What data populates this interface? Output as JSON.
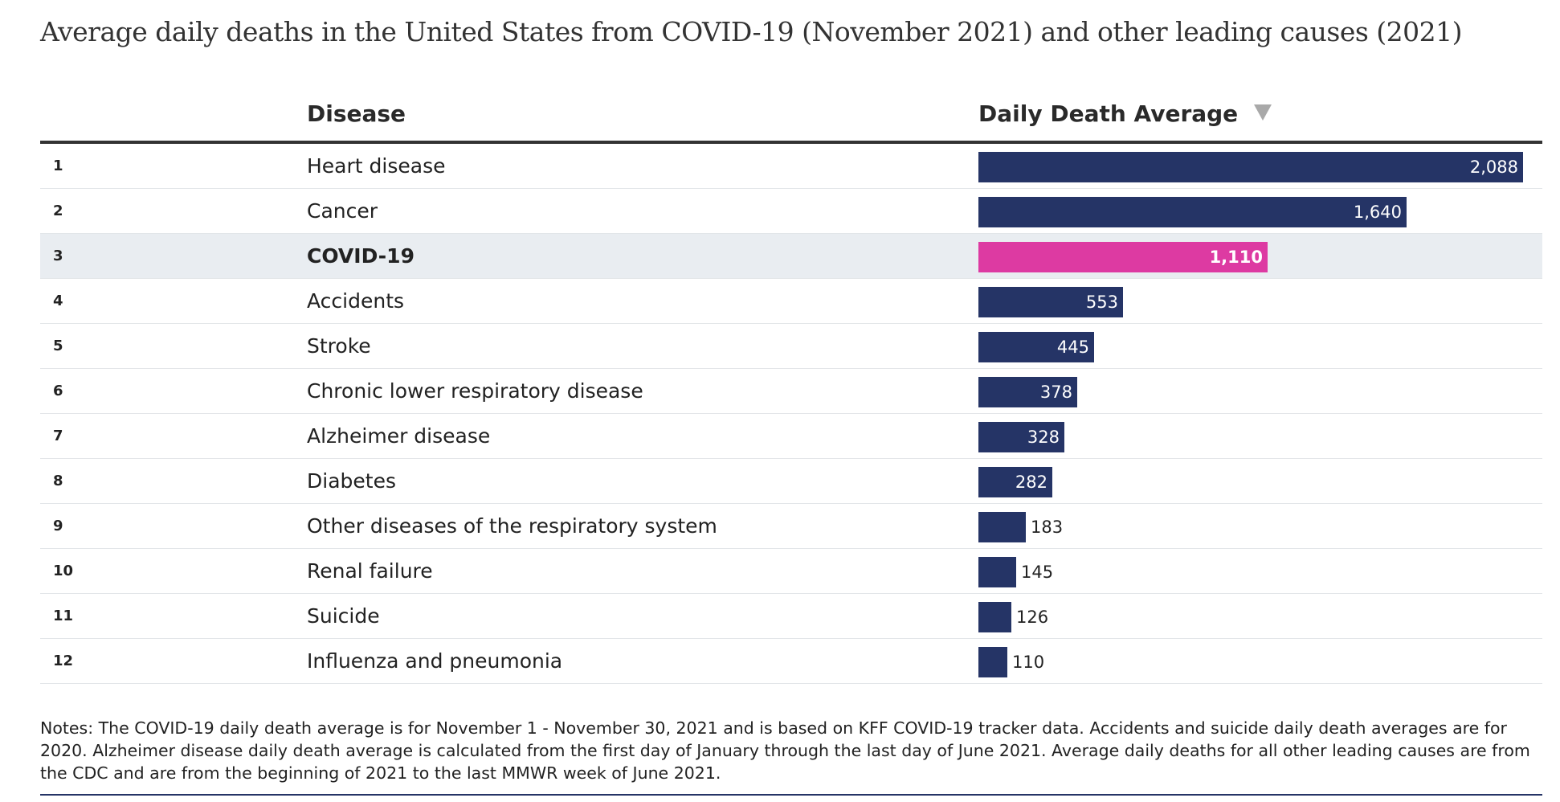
{
  "title": "Average daily deaths in the United States from COVID-19 (November 2021) and other leading causes (2021)",
  "columns": {
    "disease": "Disease",
    "value": "Daily Death Average"
  },
  "sort_icon": "triangle-down-icon",
  "colors": {
    "bar": "#253466",
    "highlight_bar": "#dd3aa2",
    "highlight_row": "#e9edf1"
  },
  "chart_data": {
    "type": "bar",
    "orientation": "horizontal",
    "title": "Average daily deaths in the United States from COVID-19 (November 2021) and other leading causes (2021)",
    "xlim": [
      0,
      2088
    ],
    "rows": [
      {
        "rank": "1",
        "disease": "Heart disease",
        "value": 2088,
        "label": "2,088",
        "highlight": false
      },
      {
        "rank": "2",
        "disease": "Cancer",
        "value": 1640,
        "label": "1,640",
        "highlight": false
      },
      {
        "rank": "3",
        "disease": "COVID-19",
        "value": 1110,
        "label": "1,110",
        "highlight": true
      },
      {
        "rank": "4",
        "disease": "Accidents",
        "value": 553,
        "label": "553",
        "highlight": false
      },
      {
        "rank": "5",
        "disease": "Stroke",
        "value": 445,
        "label": "445",
        "highlight": false
      },
      {
        "rank": "6",
        "disease": "Chronic lower respiratory disease",
        "value": 378,
        "label": "378",
        "highlight": false
      },
      {
        "rank": "7",
        "disease": "Alzheimer disease",
        "value": 328,
        "label": "328",
        "highlight": false
      },
      {
        "rank": "8",
        "disease": "Diabetes",
        "value": 282,
        "label": "282",
        "highlight": false
      },
      {
        "rank": "9",
        "disease": "Other diseases of the respiratory system",
        "value": 183,
        "label": "183",
        "highlight": false
      },
      {
        "rank": "10",
        "disease": "Renal failure",
        "value": 145,
        "label": "145",
        "highlight": false
      },
      {
        "rank": "11",
        "disease": "Suicide",
        "value": 126,
        "label": "126",
        "highlight": false
      },
      {
        "rank": "12",
        "disease": "Influenza and pneumonia",
        "value": 110,
        "label": "110",
        "highlight": false
      }
    ]
  },
  "notes": "Notes: The COVID-19 daily death average is for November 1 - November 30, 2021 and is based on KFF COVID-19 tracker data. Accidents and suicide daily death averages are for 2020. Alzheimer disease daily death average is calculated from the first day of January through the last day of June 2021. Average daily deaths for all other leading causes are from the CDC and are from the beginning of 2021 to the last MMWR week of June 2021."
}
